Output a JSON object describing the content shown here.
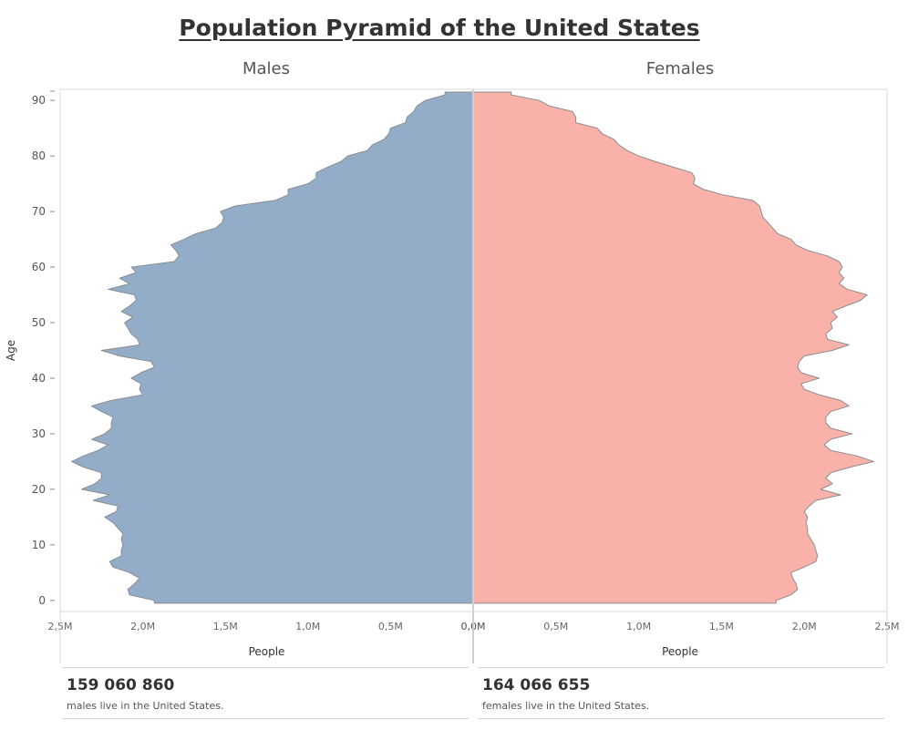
{
  "title": "Population Pyramid of the United States",
  "males_header": "Males",
  "females_header": "Females",
  "males_stat": {
    "value": "159 060 860",
    "caption": "males live in the United States."
  },
  "females_stat": {
    "value": "164 066 655",
    "caption": "females live in the United States."
  },
  "colors": {
    "males": "#93adc8",
    "females": "#fab1a9",
    "outline": "#8c8c8c"
  },
  "chart_data": {
    "type": "area",
    "title": "Population Pyramid of the United States",
    "ylabel": "Age",
    "xlabel": "People",
    "ylim": [
      -2,
      92
    ],
    "xlim": [
      0,
      2.5
    ],
    "x_unit": "millions",
    "y_ticks": [
      0,
      10,
      20,
      30,
      40,
      50,
      60,
      70,
      80,
      90
    ],
    "y_tick_labels": [
      "0",
      "10",
      "20",
      "30",
      "40",
      "50",
      "60",
      "70",
      "80",
      "90"
    ],
    "x_ticks": [
      0,
      0.5,
      1.0,
      1.5,
      2.0,
      2.5
    ],
    "male_x_tick_labels": [
      "0,0M",
      "0,5M",
      "1,0M",
      "1,5M",
      "2,0M",
      "2,5M"
    ],
    "female_x_tick_labels": [
      "0,0M",
      "0,5M",
      "1,0M",
      "1,5M",
      "2,0M",
      "2,5M"
    ],
    "ages": [
      0,
      1,
      2,
      3,
      4,
      5,
      6,
      7,
      8,
      9,
      10,
      11,
      12,
      13,
      14,
      15,
      16,
      17,
      18,
      19,
      20,
      21,
      22,
      23,
      24,
      25,
      26,
      27,
      28,
      29,
      30,
      31,
      32,
      33,
      34,
      35,
      36,
      37,
      38,
      39,
      40,
      41,
      42,
      43,
      44,
      45,
      46,
      47,
      48,
      49,
      50,
      51,
      52,
      53,
      54,
      55,
      56,
      57,
      58,
      59,
      60,
      61,
      62,
      63,
      64,
      65,
      66,
      67,
      68,
      69,
      70,
      71,
      72,
      73,
      74,
      75,
      76,
      77,
      78,
      79,
      80,
      81,
      82,
      83,
      84,
      85,
      86,
      87,
      88,
      89,
      90,
      91
    ],
    "series": [
      {
        "name": "Males",
        "values": [
          1.93,
          2.08,
          2.09,
          2.05,
          2.02,
          2.08,
          2.18,
          2.2,
          2.13,
          2.13,
          2.12,
          2.13,
          2.12,
          2.15,
          2.18,
          2.23,
          2.16,
          2.15,
          2.3,
          2.2,
          2.37,
          2.29,
          2.25,
          2.25,
          2.36,
          2.43,
          2.36,
          2.27,
          2.21,
          2.31,
          2.23,
          2.19,
          2.19,
          2.18,
          2.25,
          2.31,
          2.19,
          2.0,
          2.02,
          2.01,
          2.07,
          2.01,
          1.93,
          1.95,
          2.14,
          2.25,
          2.02,
          2.03,
          2.07,
          2.09,
          2.11,
          2.06,
          2.13,
          2.08,
          2.04,
          2.05,
          2.21,
          2.08,
          2.14,
          2.04,
          2.07,
          1.81,
          1.78,
          1.8,
          1.83,
          1.75,
          1.68,
          1.56,
          1.52,
          1.51,
          1.53,
          1.44,
          1.2,
          1.12,
          1.12,
          1.0,
          0.95,
          0.95,
          0.88,
          0.8,
          0.76,
          0.64,
          0.61,
          0.54,
          0.51,
          0.5,
          0.41,
          0.4,
          0.36,
          0.34,
          0.29,
          0.17
        ]
      },
      {
        "name": "Females",
        "values": [
          1.83,
          1.92,
          1.96,
          1.95,
          1.93,
          1.92,
          2.0,
          2.07,
          2.08,
          2.07,
          2.06,
          2.04,
          2.02,
          2.02,
          2.01,
          2.02,
          2.0,
          2.03,
          2.07,
          2.22,
          2.1,
          2.17,
          2.13,
          2.16,
          2.28,
          2.42,
          2.32,
          2.16,
          2.12,
          2.16,
          2.29,
          2.16,
          2.13,
          2.13,
          2.16,
          2.27,
          2.22,
          2.09,
          2.0,
          1.98,
          2.09,
          1.98,
          1.96,
          1.97,
          2.0,
          2.17,
          2.27,
          2.14,
          2.13,
          2.17,
          2.16,
          2.2,
          2.17,
          2.25,
          2.34,
          2.38,
          2.26,
          2.21,
          2.24,
          2.21,
          2.23,
          2.21,
          2.14,
          2.02,
          1.95,
          1.92,
          1.84,
          1.81,
          1.78,
          1.75,
          1.74,
          1.73,
          1.69,
          1.51,
          1.39,
          1.33,
          1.34,
          1.32,
          1.21,
          1.1,
          1.0,
          0.93,
          0.88,
          0.85,
          0.78,
          0.75,
          0.62,
          0.62,
          0.6,
          0.46,
          0.4,
          0.23
        ]
      }
    ]
  }
}
